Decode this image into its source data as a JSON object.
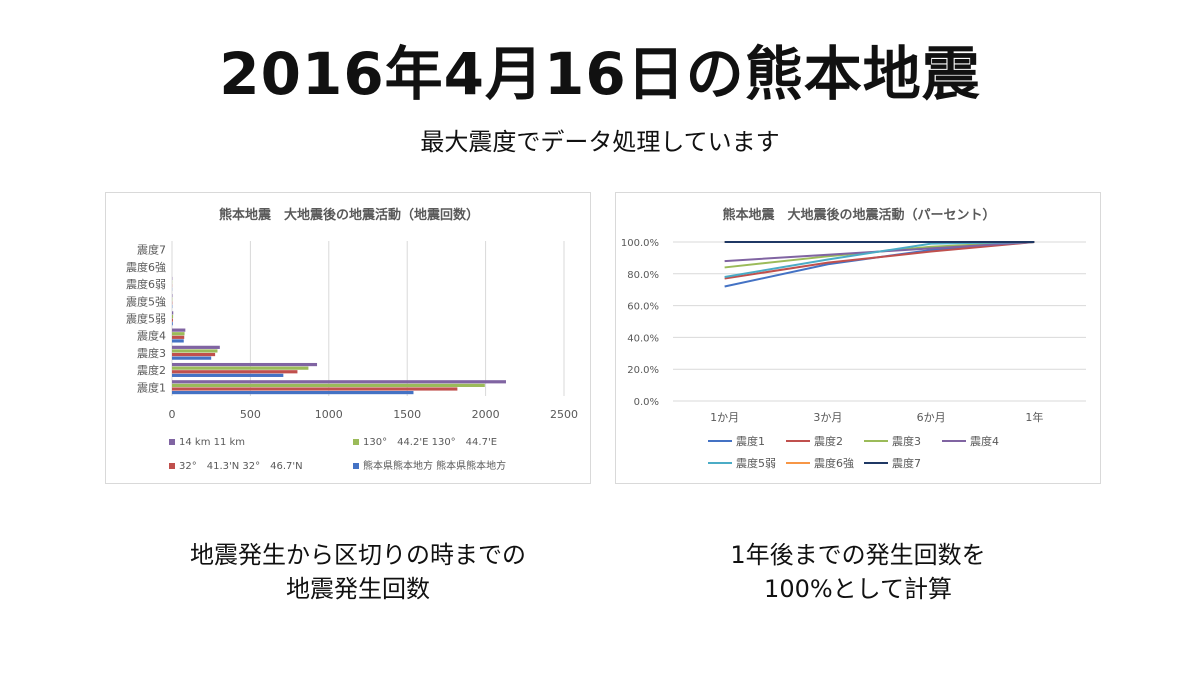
{
  "slide": {
    "title": "2016年4月16日の熊本地震",
    "subtitle": "最大震度でデータ処理しています",
    "caption_left": [
      "地震発生から区切りの時までの",
      "地震発生回数"
    ],
    "caption_right": [
      "1年後までの発生回数を",
      "100%として計算"
    ]
  },
  "chart_data": [
    {
      "type": "bar",
      "orientation": "horizontal",
      "title": "熊本地震　大地震後の地震活動（地震回数）",
      "categories": [
        "震度1",
        "震度2",
        "震度3",
        "震度4",
        "震度5弱",
        "震度5強",
        "震度6弱",
        "震度6強",
        "震度7"
      ],
      "series": [
        {
          "name": "熊本県熊本地方 熊本県熊本地方",
          "color": "#4472C4",
          "values": [
            1540,
            710,
            250,
            75,
            5,
            2,
            1,
            0,
            0
          ]
        },
        {
          "name": "32°　41.3'N 32°　46.7'N",
          "color": "#C0504D",
          "values": [
            1820,
            800,
            275,
            78,
            6,
            2,
            1,
            0,
            0
          ]
        },
        {
          "name": "130°　44.2'E 130°　44.7'E",
          "color": "#9BBB59",
          "values": [
            1995,
            870,
            290,
            80,
            7,
            2,
            1,
            0,
            0
          ]
        },
        {
          "name": "14 km 11 km",
          "color": "#8064A2",
          "values": [
            2130,
            925,
            305,
            85,
            8,
            3,
            2,
            0,
            0
          ]
        }
      ],
      "xlim": [
        0,
        2500
      ],
      "xticks": [
        "0",
        "500",
        "1000",
        "1500",
        "2000",
        "2500"
      ],
      "grid": true,
      "legend_position": "bottom"
    },
    {
      "type": "line",
      "title": "熊本地震　大地震後の地震活動（パーセント）",
      "categories": [
        "1か月",
        "3か月",
        "6か月",
        "1年"
      ],
      "series": [
        {
          "name": "震度1",
          "color": "#4472C4",
          "values": [
            72,
            86,
            95,
            100
          ]
        },
        {
          "name": "震度2",
          "color": "#C0504D",
          "values": [
            77,
            87,
            94,
            100
          ]
        },
        {
          "name": "震度3",
          "color": "#9BBB59",
          "values": [
            84,
            91,
            97,
            100
          ]
        },
        {
          "name": "震度4",
          "color": "#8064A2",
          "values": [
            88,
            92,
            96,
            100
          ]
        },
        {
          "name": "震度5弱",
          "color": "#4BACC6",
          "values": [
            78,
            89,
            99,
            100
          ]
        },
        {
          "name": "震度6強",
          "color": "#F79646",
          "values": [
            100,
            100,
            100,
            100
          ]
        },
        {
          "name": "震度7",
          "color": "#1F3864",
          "values": [
            100,
            100,
            100,
            100
          ]
        }
      ],
      "ylim": [
        0,
        100
      ],
      "yticks": [
        "0.0%",
        "20.0%",
        "40.0%",
        "60.0%",
        "80.0%",
        "100.0%"
      ],
      "grid": true,
      "legend_position": "bottom"
    }
  ]
}
